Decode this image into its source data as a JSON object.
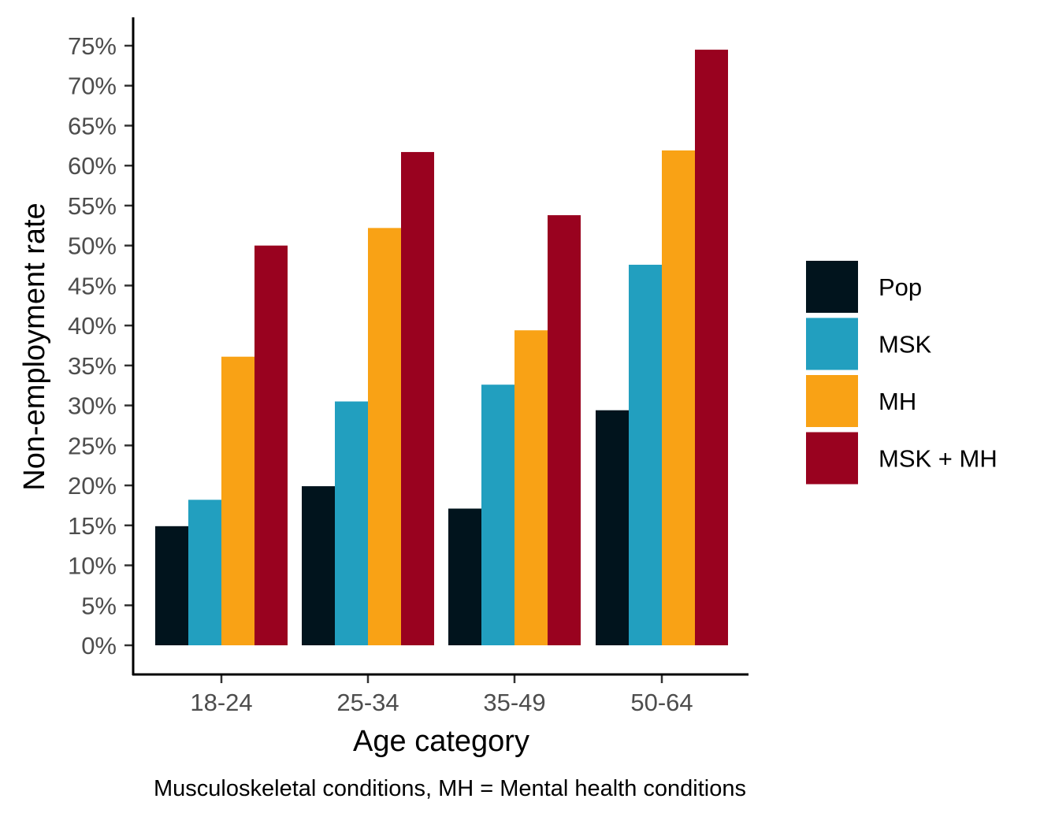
{
  "chart_data": {
    "type": "bar",
    "categories": [
      "18-24",
      "25-34",
      "35-49",
      "50-64"
    ],
    "series": [
      {
        "name": "Pop",
        "color": "#01141d",
        "values": [
          0.149,
          0.199,
          0.171,
          0.294
        ]
      },
      {
        "name": "MSK",
        "color": "#229fbf",
        "values": [
          0.182,
          0.305,
          0.326,
          0.476
        ]
      },
      {
        "name": "MH",
        "color": "#f9a215",
        "values": [
          0.361,
          0.522,
          0.394,
          0.619
        ]
      },
      {
        "name": "MSK + MH",
        "color": "#99021f",
        "values": [
          0.5,
          0.617,
          0.538,
          0.745
        ]
      }
    ],
    "xlabel": "Age category",
    "ylabel": "Non-employment rate",
    "ylim": [
      0,
      0.75
    ],
    "yticks": [
      0,
      0.05,
      0.1,
      0.15,
      0.2,
      0.25,
      0.3,
      0.35,
      0.4,
      0.45,
      0.5,
      0.55,
      0.6,
      0.65,
      0.7,
      0.75
    ],
    "ytick_labels": [
      "0%",
      "5%",
      "10%",
      "15%",
      "20%",
      "25%",
      "30%",
      "35%",
      "40%",
      "45%",
      "50%",
      "55%",
      "60%",
      "65%",
      "70%",
      "75%"
    ],
    "legend_position": "right",
    "grid": false,
    "caption": "Musculoskeletal conditions, MH = Mental health conditions"
  }
}
